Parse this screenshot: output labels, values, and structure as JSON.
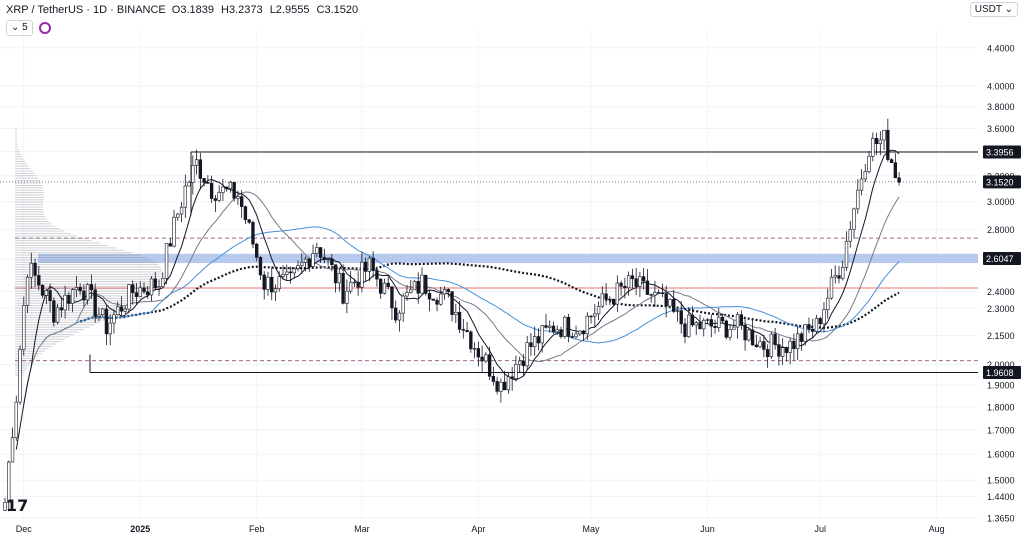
{
  "header": {
    "symbol": "XRP / TetherUS · 1D · BINANCE",
    "open": "O3.1839",
    "high": "H3.2373",
    "low": "L2.9555",
    "close": "C3.1520",
    "indicator_count": "5",
    "currency": "USDT"
  },
  "logo": {
    "label": "17"
  },
  "chart_data": {
    "type": "candlestick",
    "title": "XRP / TetherUS · 1D · BINANCE",
    "y_scale": "log",
    "ylim": [
      1.365,
      4.6
    ],
    "y_ticks": [
      "4.4000",
      "4.0000",
      "3.8000",
      "3.6000",
      "3.4000",
      "3.2000",
      "3.0000",
      "2.8000",
      "2.6000",
      "2.4000",
      "2.3000",
      "2.1500",
      "2.0000",
      "1.9000",
      "1.8000",
      "1.7000",
      "1.6000",
      "1.5000",
      "1.4400",
      "1.3650"
    ],
    "x_ticks": [
      "Dec",
      "2025",
      "Feb",
      "Mar",
      "Apr",
      "May",
      "Jun",
      "Jul",
      "Aug"
    ],
    "price_labels": [
      {
        "label": "3.3956",
        "value": 3.3956,
        "style": "dark"
      },
      {
        "label": "3.1520",
        "value": 3.152,
        "style": "dark"
      },
      {
        "label": "2.6047",
        "value": 2.6047,
        "style": "dark"
      },
      {
        "label": "1.9608",
        "value": 1.9608,
        "style": "dark"
      }
    ],
    "horizontal_levels": [
      {
        "value": 3.3956,
        "style": "solid",
        "color": "#131722"
      },
      {
        "value": 1.9608,
        "style": "solid",
        "color": "#131722"
      },
      {
        "value": 2.74,
        "style": "dashed",
        "color": "#9c6b8a"
      },
      {
        "value": 2.02,
        "style": "dashed",
        "color": "#9c6b8a"
      },
      {
        "value": 2.42,
        "style": "solid",
        "color": "#e57373"
      },
      {
        "value": 3.152,
        "style": "dotted",
        "color": "#787b86"
      }
    ],
    "zone": {
      "low": 2.575,
      "high": 2.635,
      "color": "#9fb8e8"
    },
    "colors": {
      "candle": "#131722",
      "sma_short": "#131722",
      "sma_mid": "#4a90d9",
      "sma_long": "#131722",
      "grid": "#f0f3fa"
    },
    "candles_weekly_close": [
      {
        "date": "2024-11-26",
        "c": 1.42
      },
      {
        "date": "2024-11-29",
        "c": 1.85
      },
      {
        "date": "2024-12-02",
        "c": 2.55
      },
      {
        "date": "2024-12-05",
        "c": 2.45
      },
      {
        "date": "2024-12-09",
        "c": 2.28
      },
      {
        "date": "2024-12-16",
        "c": 2.45
      },
      {
        "date": "2024-12-23",
        "c": 2.2
      },
      {
        "date": "2024-12-30",
        "c": 2.4
      },
      {
        "date": "2025-01-06",
        "c": 2.45
      },
      {
        "date": "2025-01-13",
        "c": 3.1
      },
      {
        "date": "2025-01-16",
        "c": 3.3
      },
      {
        "date": "2025-01-20",
        "c": 3.1
      },
      {
        "date": "2025-01-27",
        "c": 3.05
      },
      {
        "date": "2025-02-03",
        "c": 2.45
      },
      {
        "date": "2025-02-10",
        "c": 2.45
      },
      {
        "date": "2025-02-17",
        "c": 2.7
      },
      {
        "date": "2025-02-24",
        "c": 2.4
      },
      {
        "date": "2025-03-03",
        "c": 2.55
      },
      {
        "date": "2025-03-10",
        "c": 2.3
      },
      {
        "date": "2025-03-17",
        "c": 2.45
      },
      {
        "date": "2025-03-24",
        "c": 2.35
      },
      {
        "date": "2025-03-31",
        "c": 2.1
      },
      {
        "date": "2025-04-07",
        "c": 1.9
      },
      {
        "date": "2025-04-14",
        "c": 2.08
      },
      {
        "date": "2025-04-21",
        "c": 2.2
      },
      {
        "date": "2025-04-28",
        "c": 2.2
      },
      {
        "date": "2025-05-05",
        "c": 2.35
      },
      {
        "date": "2025-05-12",
        "c": 2.45
      },
      {
        "date": "2025-05-19",
        "c": 2.35
      },
      {
        "date": "2025-05-26",
        "c": 2.2
      },
      {
        "date": "2025-06-02",
        "c": 2.2
      },
      {
        "date": "2025-06-09",
        "c": 2.2
      },
      {
        "date": "2025-06-16",
        "c": 2.1
      },
      {
        "date": "2025-06-23",
        "c": 2.1
      },
      {
        "date": "2025-06-30",
        "c": 2.2
      },
      {
        "date": "2025-07-07",
        "c": 2.6
      },
      {
        "date": "2025-07-14",
        "c": 3.45
      },
      {
        "date": "2025-07-18",
        "c": 3.5
      },
      {
        "date": "2025-07-22",
        "c": 3.15
      }
    ]
  }
}
